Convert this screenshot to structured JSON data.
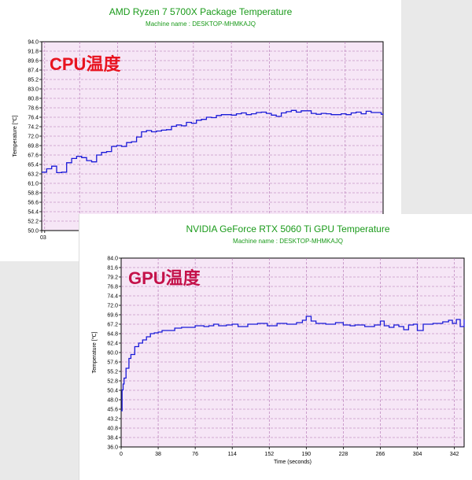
{
  "cpu_panel": {
    "title": "AMD Ryzen 7 5700X Package Temperature",
    "machine": "Machine name : DESKTOP-MHMKAJQ",
    "overlay_label": "CPU温度",
    "ylabel": "Temperature [℃]"
  },
  "gpu_panel": {
    "title": "NVIDIA GeForce RTX 5060 Ti GPU Temperature",
    "machine": "Machine name : DESKTOP-MHMKAJQ",
    "overlay_label": "GPU温度",
    "ylabel": "Temperature [℃]",
    "xlabel": "Time (seconds)"
  },
  "colors": {
    "plot_bg": "#f6e6f6",
    "grid": "#b070b0",
    "series": "#1a1ad8",
    "title": "#1a9a1a",
    "overlay": "#e8131f"
  },
  "chart_data": [
    {
      "type": "line",
      "title": "AMD Ryzen 7 5700X Package Temperature",
      "ylabel": "Temperature [℃]",
      "xlabel": "",
      "xlim": [
        0,
        342
      ],
      "ylim": [
        50.0,
        94.0
      ],
      "yticks": [
        "94.0",
        "91.8",
        "89.6",
        "87.4",
        "85.2",
        "83.0",
        "80.8",
        "78.6",
        "76.4",
        "74.2",
        "72.0",
        "69.8",
        "67.6",
        "65.4",
        "63.2",
        "61.0",
        "58.8",
        "56.6",
        "54.4",
        "52.2",
        "50.0"
      ],
      "xticks_visible": [
        "0",
        "3"
      ],
      "series": [
        {
          "x": [
            0,
            5,
            10,
            15,
            20,
            25,
            30,
            35,
            40,
            45,
            50,
            55,
            60,
            65,
            70,
            75,
            80,
            85,
            90,
            95,
            100,
            105,
            110,
            115,
            120,
            125,
            130,
            135,
            140,
            145,
            150,
            155,
            160,
            165,
            170,
            175,
            180,
            185,
            190,
            195,
            200,
            205,
            210,
            215,
            220,
            225,
            230,
            235,
            240,
            245,
            250,
            255,
            260,
            265,
            270,
            275,
            280,
            285,
            290,
            295,
            300,
            305,
            310,
            315,
            320,
            325,
            330,
            335,
            340,
            342
          ],
          "y": [
            63.6,
            64.4,
            65.0,
            63.5,
            63.6,
            65.8,
            66.8,
            67.3,
            67.0,
            66.3,
            66.0,
            67.6,
            68.2,
            68.4,
            69.6,
            69.8,
            69.6,
            70.5,
            70.7,
            71.8,
            73.0,
            73.3,
            73.0,
            73.2,
            73.4,
            73.5,
            74.3,
            74.6,
            74.4,
            75.2,
            75.0,
            75.7,
            75.9,
            76.4,
            76.3,
            76.8,
            77.0,
            77.0,
            76.9,
            77.2,
            77.4,
            77.0,
            77.2,
            77.5,
            77.6,
            77.3,
            76.9,
            76.6,
            77.4,
            77.7,
            78.0,
            77.6,
            77.9,
            77.9,
            77.3,
            77.1,
            77.3,
            77.2,
            77.0,
            77.0,
            77.2,
            77.0,
            77.4,
            77.6,
            77.2,
            77.8,
            77.5,
            77.5,
            77.1,
            77.0
          ]
        }
      ]
    },
    {
      "type": "line",
      "title": "NVIDIA GeForce RTX 5060 Ti GPU Temperature",
      "ylabel": "Temperature [℃]",
      "xlabel": "Time (seconds)",
      "xlim": [
        0,
        352
      ],
      "ylim": [
        36.0,
        84.0
      ],
      "yticks": [
        "84.0",
        "81.6",
        "79.2",
        "76.8",
        "74.4",
        "72.0",
        "69.6",
        "67.2",
        "64.8",
        "62.4",
        "60.0",
        "57.6",
        "55.2",
        "52.8",
        "50.4",
        "48.0",
        "45.6",
        "43.2",
        "40.8",
        "38.4",
        "36.0"
      ],
      "xticks": [
        "0",
        "38",
        "76",
        "114",
        "152",
        "190",
        "228",
        "266",
        "304",
        "342"
      ],
      "series": [
        {
          "x": [
            0,
            1,
            2,
            3,
            5,
            8,
            10,
            14,
            18,
            22,
            26,
            30,
            34,
            38,
            42,
            48,
            55,
            62,
            70,
            76,
            85,
            90,
            95,
            100,
            108,
            114,
            120,
            130,
            140,
            150,
            160,
            170,
            180,
            186,
            190,
            195,
            200,
            210,
            220,
            228,
            235,
            240,
            250,
            260,
            266,
            270,
            275,
            280,
            285,
            290,
            295,
            300,
            304,
            310,
            320,
            330,
            336,
            340,
            344,
            348,
            352
          ],
          "y": [
            45.2,
            50.5,
            52.0,
            53.5,
            56.0,
            58.5,
            59.5,
            61.5,
            62.4,
            63.2,
            64.0,
            64.8,
            65.0,
            65.2,
            65.6,
            65.6,
            66.2,
            66.4,
            66.4,
            66.8,
            66.6,
            66.8,
            67.2,
            66.8,
            67.0,
            67.2,
            66.6,
            67.2,
            67.4,
            66.8,
            67.4,
            67.2,
            67.6,
            68.2,
            69.2,
            68.0,
            67.4,
            67.2,
            67.6,
            67.0,
            66.8,
            67.0,
            66.6,
            67.0,
            68.0,
            66.8,
            66.4,
            67.0,
            66.6,
            65.8,
            67.0,
            67.2,
            65.6,
            67.2,
            67.4,
            67.8,
            68.2,
            67.4,
            68.4,
            66.6,
            68.4
          ]
        }
      ]
    }
  ]
}
